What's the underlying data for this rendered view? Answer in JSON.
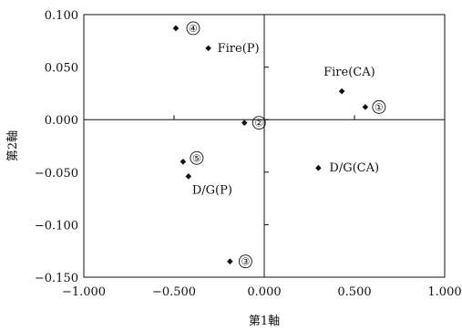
{
  "chart_data": {
    "type": "scatter",
    "title": "",
    "xlabel": "第1軸",
    "ylabel": "第2軸",
    "xlim": [
      -1.0,
      1.0
    ],
    "ylim": [
      -0.15,
      0.1
    ],
    "xticks": [
      -1.0,
      -0.5,
      0.0,
      0.5,
      1.0
    ],
    "xtick_labels": [
      "−1.000",
      "−0.500",
      "0.000",
      "0.500",
      "1.000"
    ],
    "yticks": [
      0.1,
      0.05,
      0.0,
      -0.05,
      -0.1,
      -0.15
    ],
    "ytick_labels": [
      "0.100",
      "0.050",
      "0.000",
      "−0.050",
      "−0.100",
      "−0.150"
    ],
    "grid": false,
    "zero_lines": true,
    "points": [
      {
        "x": -0.49,
        "y": 0.087,
        "label": "④",
        "label_style": "circled"
      },
      {
        "x": -0.31,
        "y": 0.068,
        "label": "Fire(P)"
      },
      {
        "x": 0.43,
        "y": 0.027,
        "label": "Fire(CA)"
      },
      {
        "x": 0.56,
        "y": 0.012,
        "label": "①",
        "label_style": "circled"
      },
      {
        "x": -0.11,
        "y": -0.003,
        "label": "②",
        "label_style": "circled"
      },
      {
        "x": -0.45,
        "y": -0.04,
        "label": "⑤",
        "label_style": "circled"
      },
      {
        "x": -0.42,
        "y": -0.054,
        "label": "D/G(P)"
      },
      {
        "x": 0.3,
        "y": -0.046,
        "label": "D/G(CA)"
      },
      {
        "x": -0.19,
        "y": -0.135,
        "label": "③",
        "label_style": "circled"
      }
    ],
    "point_color": "#111111"
  }
}
